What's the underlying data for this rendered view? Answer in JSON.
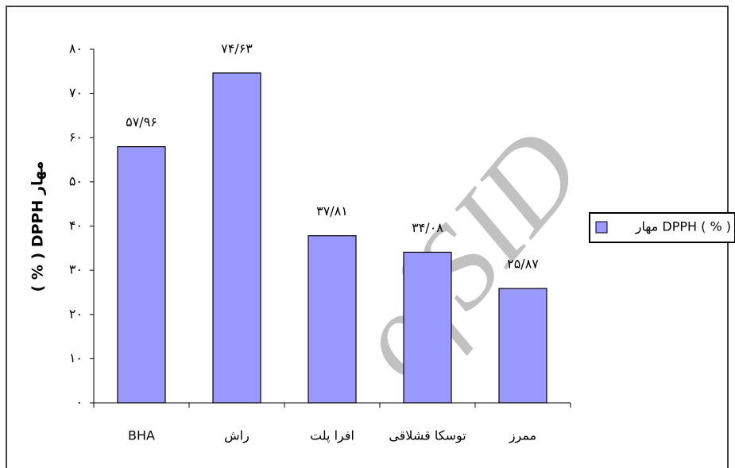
{
  "chart_data": {
    "type": "bar",
    "categories": [
      "BHA",
      "راش",
      "افرا پلت",
      "توسکا قشلاقی",
      "ممرز"
    ],
    "values": [
      57.96,
      74.63,
      37.81,
      34.08,
      25.87
    ],
    "value_labels": [
      "۵۷/۹۶",
      "۷۴/۶۳",
      "۳۷/۸۱",
      "۳۴/۰۸",
      "۲۵/۸۷"
    ],
    "color": "#9999ff",
    "y_label": "( % ) DPPH مهار",
    "series_name": "مهار DPPH ( % )",
    "watermark": "ofSID",
    "ylim": [
      0,
      80
    ],
    "yticks": [
      {
        "value": 0,
        "label": "۰"
      },
      {
        "value": 10,
        "label": "۱۰"
      },
      {
        "value": 20,
        "label": "۲۰"
      },
      {
        "value": 30,
        "label": "۳۰"
      },
      {
        "value": 40,
        "label": "۴۰"
      },
      {
        "value": 50,
        "label": "۵۰"
      },
      {
        "value": 60,
        "label": "۶۰"
      },
      {
        "value": 70,
        "label": "۷۰"
      },
      {
        "value": 80,
        "label": "۸۰"
      }
    ],
    "legend": "right"
  }
}
